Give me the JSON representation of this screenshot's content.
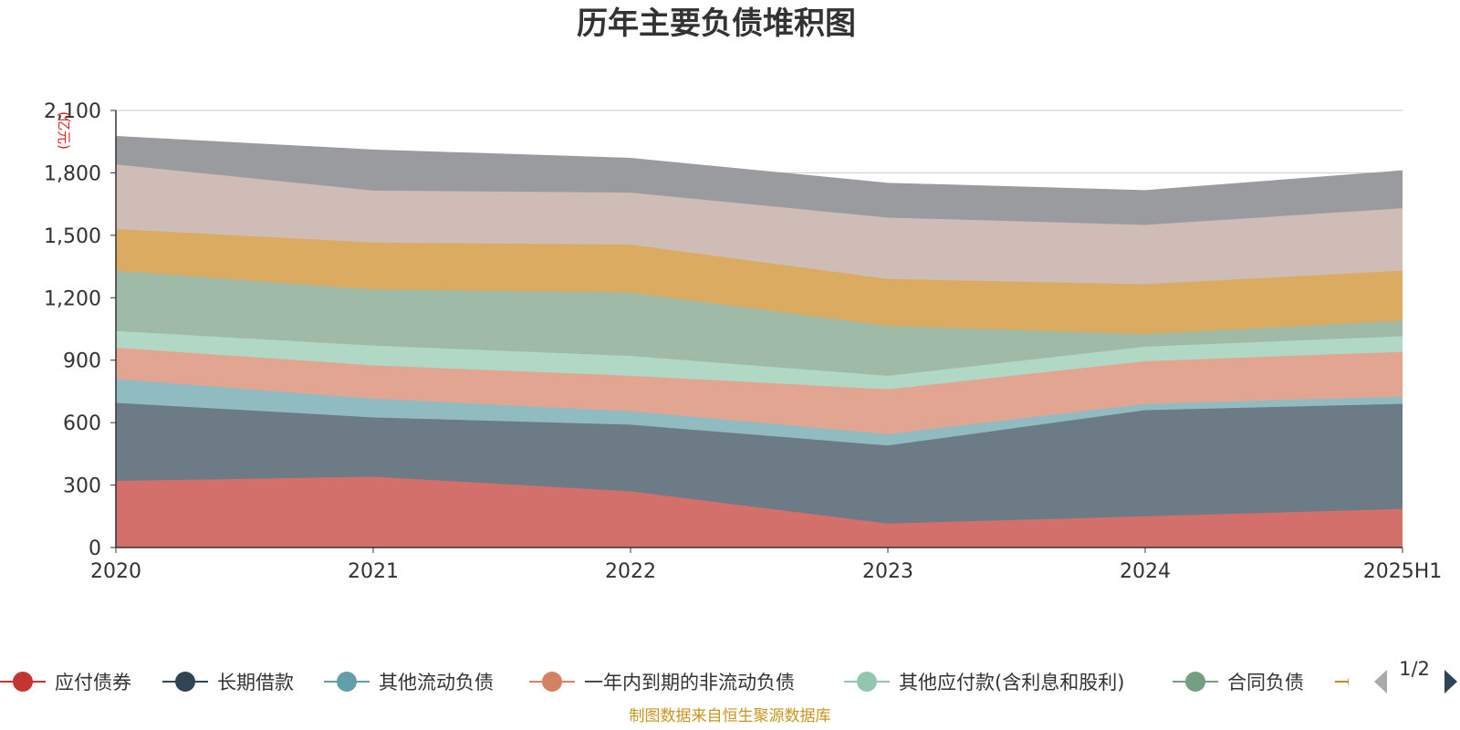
{
  "chart_data": {
    "type": "area",
    "title": "历年主要负债堆积图",
    "unit": "(亿元)",
    "source": "制图数据来自恒生聚源数据库",
    "x": [
      "2020",
      "2021",
      "2022",
      "2023",
      "2024",
      "2025H1"
    ],
    "ylim": [
      0,
      2100
    ],
    "yticks": [
      "0",
      "300",
      "600",
      "900",
      "1,200",
      "1,500",
      "1,800",
      "2,100"
    ],
    "grid": true,
    "legend_position": "bottom",
    "legend_page": "1/2",
    "series": [
      {
        "name": "应付债券",
        "color": "#c23531",
        "fill": "#d4706c",
        "values": [
          320,
          340,
          270,
          115,
          150,
          185
        ]
      },
      {
        "name": "长期借款",
        "color": "#2f4554",
        "fill": "#6d7b87",
        "values": [
          375,
          285,
          320,
          375,
          510,
          505
        ]
      },
      {
        "name": "其他流动负债",
        "color": "#61a0a8",
        "fill": "#90bcc1",
        "values": [
          115,
          90,
          65,
          55,
          30,
          35
        ]
      },
      {
        "name": "一年内到期的非流动负债",
        "color": "#d48265",
        "fill": "#e2a592",
        "values": [
          150,
          160,
          170,
          215,
          205,
          215
        ]
      },
      {
        "name": "其他应付款(含利息和股利)",
        "color": "#91c7ae",
        "fill": "#b1d8c5",
        "values": [
          80,
          95,
          95,
          65,
          70,
          75
        ]
      },
      {
        "name": "合同负债",
        "color": "#749f83",
        "fill": "#9fbba8",
        "values": [
          290,
          270,
          305,
          240,
          60,
          75
        ]
      },
      {
        "series_color_only": true,
        "color": "#ca8622",
        "fill": "#daab60",
        "values": [
          200,
          225,
          230,
          225,
          240,
          240
        ]
      },
      {
        "series_color_only": true,
        "color": "#bda29a",
        "fill": "#d0bcb6",
        "values": [
          310,
          250,
          250,
          295,
          285,
          300
        ]
      },
      {
        "series_color_only": true,
        "color": "#6e7074",
        "fill": "#9a9b9f",
        "values": [
          135,
          195,
          165,
          165,
          165,
          180
        ]
      }
    ]
  }
}
